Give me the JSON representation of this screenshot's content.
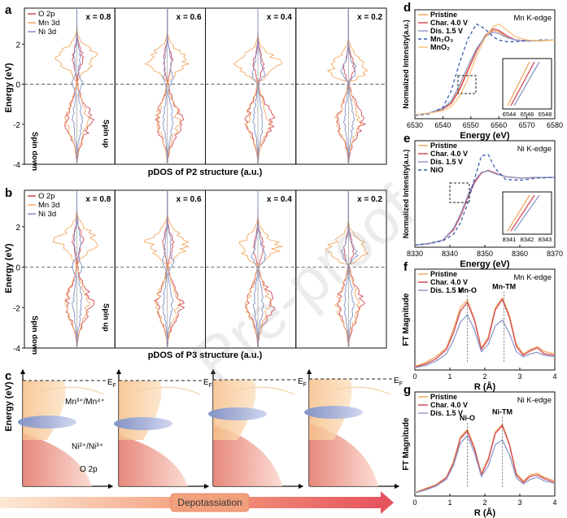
{
  "colors": {
    "o2p": "#d24a57",
    "mn3d": "#f2a860",
    "ni3d": "#8090c8",
    "pristine": "#f2a860",
    "charged": "#d24a57",
    "discharged": "#8f9ac9",
    "ref1": "#3c5ab0",
    "ref2": "#f7c27a"
  },
  "panels": {
    "a": {
      "letter": "a",
      "ylabel": "Energy (eV)",
      "xlabel": "pDOS of P2 structure (a.u.)",
      "legend": [
        "O 2p",
        "Mn 3d",
        "Ni 3d"
      ],
      "spin_down": "Spin down",
      "spin_up": "Spin up",
      "subplots": [
        "x = 0.8",
        "x = 0.6",
        "x = 0.4",
        "x = 0.2"
      ],
      "yticks": [
        "2",
        "0",
        "-2",
        "-4"
      ]
    },
    "b": {
      "letter": "b",
      "ylabel": "Energy (eV)",
      "xlabel": "pDOS of P3 structure (a.u.)",
      "legend": [
        "O 2p",
        "Mn 3d",
        "Ni 3d"
      ],
      "spin_down": "Spin down",
      "spin_up": "Spin up",
      "subplots": [
        "x = 0.8",
        "x = 0.6",
        "x = 0.4",
        "x = 0.2"
      ],
      "yticks": [
        "2",
        "0",
        "-2",
        "-4"
      ]
    },
    "c": {
      "letter": "c",
      "ylabel": "Energy (eV)",
      "mn_label": "Mn³⁺/Mn⁴⁺",
      "ni_label": "Ni²⁺/Ni³⁺",
      "o_label": "O 2p",
      "ef_label": "E",
      "ef_sub": "F",
      "arrow_label": "Depotassiation"
    },
    "d": {
      "letter": "d",
      "title": "Mn K-edge",
      "ylabel": "Normalized Intensity(a.u.)",
      "xlabel": "Energy (eV)",
      "legend": [
        "Pristine",
        "Char. 4.0 V",
        "Dis. 1.5 V",
        "Mn₂O₃",
        "MnO₂"
      ],
      "xticks": [
        "6530",
        "6540",
        "6550",
        "6560",
        "6570",
        "6580"
      ],
      "inset_xticks": [
        "6544",
        "6546",
        "6548"
      ]
    },
    "e": {
      "letter": "e",
      "title": "Ni K-edge",
      "ylabel": "Normalized Intensity(a.u.)",
      "xlabel": "Energy (eV)",
      "legend": [
        "Pristine",
        "Char. 4.0 V",
        "Dis. 1.5 V",
        "NiO"
      ],
      "xticks": [
        "8330",
        "8340",
        "8350",
        "8360",
        "8370"
      ],
      "inset_xticks": [
        "8341",
        "8342",
        "8343"
      ]
    },
    "f": {
      "letter": "f",
      "title": "Mn K-edge",
      "ylabel": "FT Magnitude",
      "xlabel": "R (Å)",
      "legend": [
        "Pristine",
        "Char. 4.0 V",
        "Dis. 1.5 V"
      ],
      "annot": [
        "Mn-O",
        "Mn-TM"
      ],
      "xticks": [
        "0",
        "1",
        "2",
        "3",
        "4"
      ]
    },
    "g": {
      "letter": "g",
      "title": "Ni K-edge",
      "ylabel": "FT Magnitude",
      "xlabel": "R (Å)",
      "legend": [
        "Pristine",
        "Char. 4.0 V",
        "Dis. 1.5 V"
      ],
      "annot": [
        "Ni-O",
        "Ni-TM"
      ],
      "xticks": [
        "0",
        "1",
        "2",
        "3",
        "4"
      ]
    }
  },
  "watermark": "Pre-proof",
  "chart_data": [
    {
      "type": "line",
      "panel": "a",
      "xlabel": "pDOS of P2 structure (a.u.)",
      "ylabel": "Energy (eV)",
      "ylim": [
        -4,
        3.8
      ],
      "series": [
        {
          "name": "O 2p"
        },
        {
          "name": "Mn 3d"
        },
        {
          "name": "Ni 3d"
        }
      ],
      "subplots": [
        "x = 0.8",
        "x = 0.6",
        "x = 0.4",
        "x = 0.2"
      ]
    },
    {
      "type": "line",
      "panel": "b",
      "xlabel": "pDOS of P3 structure (a.u.)",
      "ylabel": "Energy (eV)",
      "ylim": [
        -4,
        3.8
      ],
      "series": [
        {
          "name": "O 2p"
        },
        {
          "name": "Mn 3d"
        },
        {
          "name": "Ni 3d"
        }
      ],
      "subplots": [
        "x = 0.8",
        "x = 0.6",
        "x = 0.4",
        "x = 0.2"
      ]
    },
    {
      "type": "line",
      "panel": "d",
      "title": "Mn K-edge",
      "xlabel": "Energy (eV)",
      "ylabel": "Normalized Intensity(a.u.)",
      "xlim": [
        6530,
        6580
      ],
      "series": [
        {
          "name": "Pristine",
          "x": [
            6530,
            6535,
            6540,
            6543,
            6546,
            6549,
            6552,
            6555,
            6558,
            6560,
            6563,
            6566,
            6570,
            6575,
            6580
          ],
          "y": [
            0.05,
            0.07,
            0.12,
            0.2,
            0.38,
            0.62,
            0.85,
            1.02,
            1.1,
            1.08,
            1.02,
            0.98,
            0.97,
            0.97,
            0.98
          ]
        },
        {
          "name": "Char. 4.0 V",
          "x": [
            6530,
            6535,
            6540,
            6543,
            6546,
            6549,
            6552,
            6555,
            6558,
            6560,
            6563,
            6566,
            6570,
            6575,
            6580
          ],
          "y": [
            0.05,
            0.07,
            0.12,
            0.19,
            0.36,
            0.6,
            0.84,
            1.03,
            1.12,
            1.1,
            1.03,
            0.98,
            0.97,
            0.97,
            0.98
          ]
        },
        {
          "name": "Dis. 1.5 V",
          "x": [
            6530,
            6535,
            6540,
            6543,
            6546,
            6549,
            6552,
            6555,
            6558,
            6560,
            6563,
            6566,
            6570,
            6575,
            6580
          ],
          "y": [
            0.05,
            0.07,
            0.13,
            0.22,
            0.42,
            0.66,
            0.87,
            1.02,
            1.08,
            1.06,
            1.01,
            0.98,
            0.97,
            0.97,
            0.98
          ]
        },
        {
          "name": "Mn₂O₃",
          "x": [
            6530,
            6535,
            6540,
            6543,
            6546,
            6549,
            6552,
            6555,
            6558,
            6560,
            6563,
            6566,
            6570,
            6575,
            6580
          ],
          "y": [
            0.04,
            0.06,
            0.14,
            0.35,
            0.7,
            1.0,
            1.18,
            1.12,
            1.02,
            0.98,
            0.96,
            0.96,
            0.97,
            0.98,
            0.98
          ]
        },
        {
          "name": "MnO₂",
          "x": [
            6530,
            6535,
            6540,
            6543,
            6546,
            6549,
            6552,
            6555,
            6558,
            6560,
            6563,
            6566,
            6570,
            6575,
            6580
          ],
          "y": [
            0.05,
            0.07,
            0.1,
            0.15,
            0.28,
            0.5,
            0.78,
            1.0,
            1.15,
            1.18,
            1.1,
            1.02,
            0.98,
            0.97,
            0.98
          ]
        }
      ]
    },
    {
      "type": "line",
      "panel": "e",
      "title": "Ni K-edge",
      "xlabel": "Energy (eV)",
      "ylabel": "Normalized Intensity(a.u.)",
      "xlim": [
        8330,
        8370
      ],
      "series": [
        {
          "name": "Pristine",
          "x": [
            8330,
            8334,
            8338,
            8341,
            8343,
            8345,
            8347,
            8349,
            8351,
            8353,
            8356,
            8360,
            8365,
            8370
          ],
          "y": [
            0.03,
            0.05,
            0.1,
            0.25,
            0.45,
            0.7,
            0.92,
            1.05,
            1.08,
            1.04,
            0.99,
            0.97,
            0.98,
            0.98
          ]
        },
        {
          "name": "Char. 4.0 V",
          "x": [
            8330,
            8334,
            8338,
            8341,
            8343,
            8345,
            8347,
            8349,
            8351,
            8353,
            8356,
            8360,
            8365,
            8370
          ],
          "y": [
            0.03,
            0.05,
            0.1,
            0.24,
            0.43,
            0.68,
            0.9,
            1.04,
            1.08,
            1.04,
            0.99,
            0.97,
            0.98,
            0.98
          ]
        },
        {
          "name": "Dis. 1.5 V",
          "x": [
            8330,
            8334,
            8338,
            8341,
            8343,
            8345,
            8347,
            8349,
            8351,
            8353,
            8356,
            8360,
            8365,
            8370
          ],
          "y": [
            0.03,
            0.05,
            0.1,
            0.26,
            0.46,
            0.71,
            0.93,
            1.05,
            1.07,
            1.03,
            0.99,
            0.97,
            0.98,
            0.98
          ]
        },
        {
          "name": "NiO",
          "x": [
            8330,
            8334,
            8338,
            8341,
            8343,
            8345,
            8347,
            8349,
            8351,
            8353,
            8356,
            8360,
            8365,
            8370
          ],
          "y": [
            0.03,
            0.05,
            0.09,
            0.18,
            0.34,
            0.6,
            0.95,
            1.28,
            1.3,
            1.1,
            0.95,
            0.94,
            0.97,
            0.98
          ]
        }
      ]
    },
    {
      "type": "line",
      "panel": "f",
      "title": "Mn K-edge",
      "xlabel": "R (Å)",
      "ylabel": "FT Magnitude",
      "xlim": [
        0,
        4
      ],
      "series": [
        {
          "name": "Pristine",
          "x": [
            0,
            0.3,
            0.6,
            0.9,
            1.1,
            1.3,
            1.5,
            1.7,
            1.9,
            2.1,
            2.3,
            2.5,
            2.7,
            2.9,
            3.1,
            3.3,
            3.5,
            3.7,
            4.0
          ],
          "y": [
            0.05,
            0.1,
            0.18,
            0.3,
            0.55,
            0.85,
            0.95,
            0.7,
            0.3,
            0.45,
            0.85,
            0.98,
            0.75,
            0.35,
            0.22,
            0.28,
            0.32,
            0.25,
            0.22
          ]
        },
        {
          "name": "Char. 4.0 V",
          "x": [
            0,
            0.3,
            0.6,
            0.9,
            1.1,
            1.3,
            1.5,
            1.7,
            1.9,
            2.1,
            2.3,
            2.5,
            2.7,
            2.9,
            3.1,
            3.3,
            3.5,
            3.7,
            4.0
          ],
          "y": [
            0.04,
            0.08,
            0.15,
            0.28,
            0.5,
            0.8,
            0.92,
            0.68,
            0.28,
            0.42,
            0.82,
            0.96,
            0.72,
            0.32,
            0.2,
            0.26,
            0.3,
            0.22,
            0.2
          ]
        },
        {
          "name": "Dis. 1.5 V",
          "x": [
            0,
            0.3,
            0.6,
            0.9,
            1.1,
            1.3,
            1.5,
            1.7,
            1.9,
            2.1,
            2.3,
            2.5,
            2.7,
            2.9,
            3.1,
            3.3,
            3.5,
            3.7,
            4.0
          ],
          "y": [
            0.03,
            0.06,
            0.12,
            0.22,
            0.4,
            0.65,
            0.75,
            0.55,
            0.25,
            0.35,
            0.6,
            0.68,
            0.5,
            0.25,
            0.18,
            0.22,
            0.24,
            0.2,
            0.18
          ]
        }
      ]
    },
    {
      "type": "line",
      "panel": "g",
      "title": "Ni K-edge",
      "xlabel": "R (Å)",
      "ylabel": "FT Magnitude",
      "xlim": [
        0,
        4
      ],
      "series": [
        {
          "name": "Pristine",
          "x": [
            0,
            0.3,
            0.6,
            0.9,
            1.1,
            1.3,
            1.5,
            1.7,
            1.9,
            2.1,
            2.3,
            2.5,
            2.7,
            2.9,
            3.1,
            3.3,
            3.5,
            3.7,
            4.0
          ],
          "y": [
            0.05,
            0.1,
            0.15,
            0.25,
            0.45,
            0.78,
            0.88,
            0.65,
            0.3,
            0.5,
            0.85,
            0.95,
            0.7,
            0.3,
            0.2,
            0.28,
            0.3,
            0.25,
            0.2
          ]
        },
        {
          "name": "Char. 4.0 V",
          "x": [
            0,
            0.3,
            0.6,
            0.9,
            1.1,
            1.3,
            1.5,
            1.7,
            1.9,
            2.1,
            2.3,
            2.5,
            2.7,
            2.9,
            3.1,
            3.3,
            3.5,
            3.7,
            4.0
          ],
          "y": [
            0.04,
            0.09,
            0.14,
            0.24,
            0.43,
            0.76,
            0.86,
            0.63,
            0.28,
            0.48,
            0.83,
            0.93,
            0.68,
            0.28,
            0.18,
            0.26,
            0.28,
            0.23,
            0.18
          ]
        },
        {
          "name": "Dis. 1.5 V",
          "x": [
            0,
            0.3,
            0.6,
            0.9,
            1.1,
            1.3,
            1.5,
            1.7,
            1.9,
            2.1,
            2.3,
            2.5,
            2.7,
            2.9,
            3.1,
            3.3,
            3.5,
            3.7,
            4.0
          ],
          "y": [
            0.04,
            0.08,
            0.13,
            0.22,
            0.4,
            0.7,
            0.8,
            0.58,
            0.26,
            0.4,
            0.68,
            0.74,
            0.55,
            0.24,
            0.16,
            0.22,
            0.25,
            0.2,
            0.17
          ]
        }
      ]
    }
  ]
}
